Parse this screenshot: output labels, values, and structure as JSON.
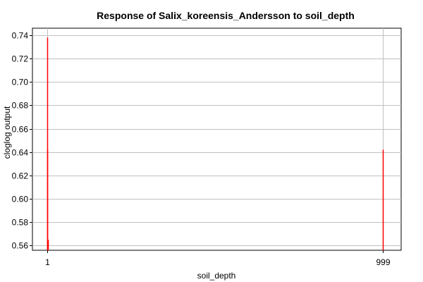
{
  "chart_data": {
    "type": "line",
    "title": "Response of Salix_koreensis_Andersson to soil_depth",
    "xlabel": "soil_depth",
    "ylabel": "cloglog output",
    "x_ticks": [
      "1",
      "999"
    ],
    "y_ticks": [
      "0.56",
      "0.58",
      "0.60",
      "0.62",
      "0.64",
      "0.66",
      "0.68",
      "0.70",
      "0.72",
      "0.74"
    ],
    "ylim": [
      0.556,
      0.746
    ],
    "grid": true,
    "series": [
      {
        "color": "#ff0000",
        "spikes": [
          {
            "x": 1,
            "y_top": 0.738,
            "y_bottom": 0.556
          },
          {
            "x": 1,
            "y_top": 0.642,
            "y_bottom": 0.556
          },
          {
            "x": 1,
            "y_top": 0.565,
            "y_bottom": 0.556
          },
          {
            "x": 999,
            "y_top": 0.642,
            "y_bottom": 0.556
          }
        ]
      }
    ]
  }
}
